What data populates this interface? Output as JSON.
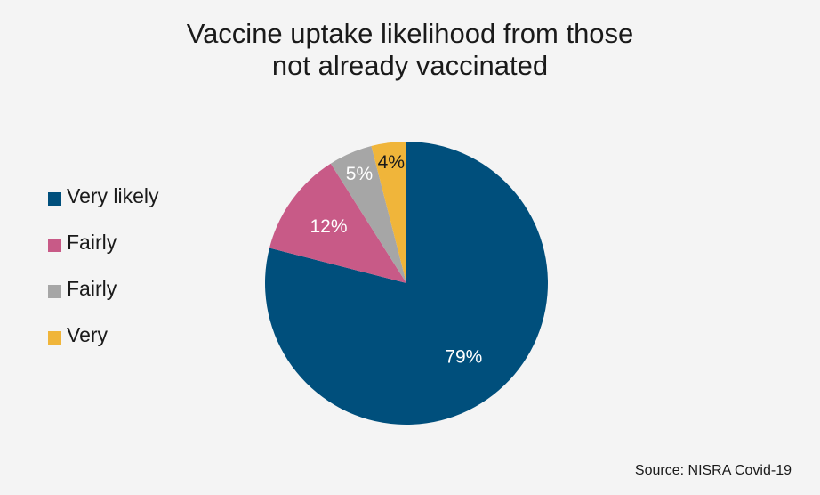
{
  "chart_data": {
    "type": "pie",
    "title_lines": [
      "Vaccine uptake likelihood from those",
      "not already vaccinated"
    ],
    "slices": [
      {
        "label": "Very likely",
        "value": 79,
        "value_label": "79%",
        "color": "#004f7c",
        "text_color": "#ffffff"
      },
      {
        "label": "Fairly",
        "value": 12,
        "value_label": "12%",
        "color": "#c85a87",
        "text_color": "#ffffff"
      },
      {
        "label": "Fairly",
        "value": 5,
        "value_label": "5%",
        "color": "#a6a6a6",
        "text_color": "#ffffff"
      },
      {
        "label": "Very",
        "value": 4,
        "value_label": "4%",
        "color": "#f0b53a",
        "text_color": "#1a1a1a"
      }
    ],
    "start_angle_deg": 0,
    "direction": "clockwise",
    "legend_position": "left",
    "source": "Source: NISRA Covid-19"
  }
}
